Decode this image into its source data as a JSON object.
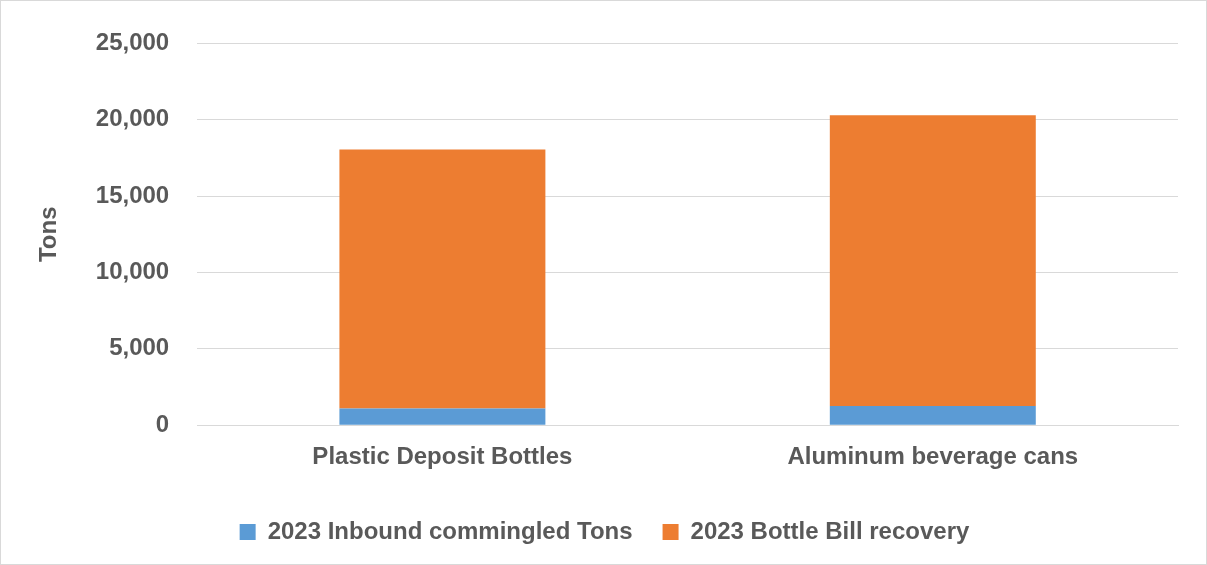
{
  "chart_data": {
    "type": "bar",
    "stacked": true,
    "ylabel": "Tons",
    "categories": [
      "Plastic Deposit Bottles",
      "Aluminum beverage cans"
    ],
    "series": [
      {
        "name": "2023 Inbound commingled Tons",
        "color": "#5b9bd5",
        "values": [
          1100,
          1250
        ]
      },
      {
        "name": "2023 Bottle Bill recovery",
        "color": "#ed7d31",
        "values": [
          16950,
          19050
        ]
      }
    ],
    "ylim": [
      0,
      25000
    ],
    "yticks": [
      {
        "value": 0,
        "label": "0"
      },
      {
        "value": 5000,
        "label": "5,000"
      },
      {
        "value": 10000,
        "label": "10,000"
      },
      {
        "value": 15000,
        "label": "15,000"
      },
      {
        "value": 20000,
        "label": "20,000"
      },
      {
        "value": 25000,
        "label": "25,000"
      }
    ],
    "grid": "y",
    "legend": "bottom"
  }
}
